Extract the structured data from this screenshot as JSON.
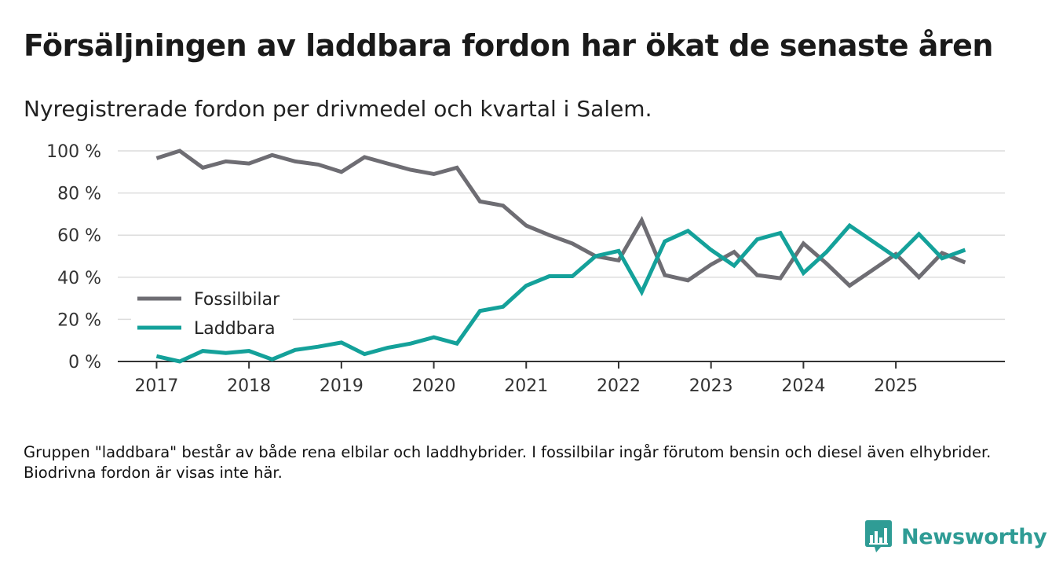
{
  "title": "Försäljningen av laddbara fordon har ökat de senaste åren",
  "subtitle": "Nyregistrerade fordon per drivmedel och kvartal i Salem.",
  "footnote": "Gruppen \"laddbara\" består av både rena elbilar och laddhybrider. I fossilbilar ingår förutom bensin och diesel även elhybrider. Biodrivna fordon är visas inte här.",
  "brand": {
    "name": "Newsworthy",
    "logo_icon": "bar-chart-speech-icon",
    "color": "#2f9c95"
  },
  "chart_data": {
    "type": "line",
    "x_unit": "quarter",
    "x_start": 2017.0,
    "x_step": 0.25,
    "xlim": [
      2016.58,
      2026.18
    ],
    "ylim": [
      0,
      100
    ],
    "yticks": [
      0,
      20,
      40,
      60,
      80,
      100
    ],
    "ytick_labels": [
      "0 %",
      "20 %",
      "40 %",
      "60 %",
      "80 %",
      "100 %"
    ],
    "xticks": [
      2017,
      2018,
      2019,
      2020,
      2021,
      2022,
      2023,
      2024,
      2025
    ],
    "xtick_labels": [
      "2017",
      "2018",
      "2019",
      "2020",
      "2021",
      "2022",
      "2023",
      "2024",
      "2025"
    ],
    "legend_position": "bottom-left",
    "grid": true,
    "series": [
      {
        "name": "Fossilbilar",
        "color": "#6e6d73",
        "values": [
          96.5,
          100,
          92,
          95,
          94,
          98,
          95,
          93.5,
          90,
          97,
          94,
          91,
          89,
          92,
          76,
          74,
          64.5,
          60,
          56,
          50,
          48,
          67,
          41,
          38.5,
          46,
          52,
          41,
          39.5,
          56,
          46.5,
          36,
          43.5,
          51,
          40,
          51.5,
          47
        ]
      },
      {
        "name": "Laddbara",
        "color": "#14a19a",
        "values": [
          2.5,
          0,
          5,
          4,
          5,
          1,
          5.5,
          7,
          9,
          3.5,
          6.5,
          8.5,
          11.5,
          8.5,
          24,
          26,
          36,
          40.5,
          40.5,
          50,
          52.5,
          33,
          57,
          62,
          53,
          45.5,
          58,
          61,
          42,
          52,
          64.5,
          57,
          49.5,
          60.5,
          49,
          53
        ]
      }
    ]
  }
}
